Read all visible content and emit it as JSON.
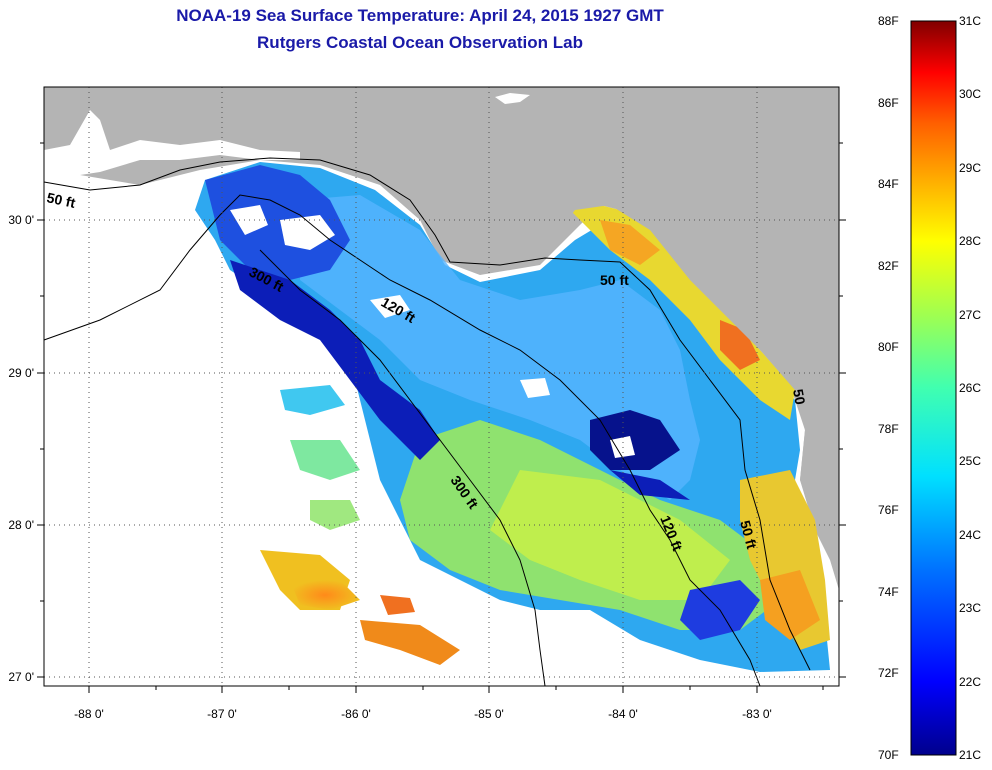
{
  "title": {
    "line1": "NOAA-19 Sea Surface Temperature:  April 24, 2015 1927 GMT",
    "line2": "Rutgers Coastal Ocean Observation Lab"
  },
  "axes": {
    "x_ticks": [
      "-88 0'",
      "-87 0'",
      "-86 0'",
      "-85 0'",
      "-84 0'",
      "-83 0'"
    ],
    "y_ticks": [
      "30 0'",
      "29 0'",
      "28 0'",
      "27 0'"
    ]
  },
  "contours": [
    "50 ft",
    "300 ft",
    "120 ft",
    "50 ft",
    "300 ft",
    "120 ft",
    "50 ft",
    "50"
  ],
  "colorbar": {
    "fahrenheit": [
      "88F",
      "86F",
      "84F",
      "82F",
      "80F",
      "78F",
      "76F",
      "74F",
      "72F",
      "70F"
    ],
    "celsius": [
      "31C",
      "30C",
      "29C",
      "28C",
      "27C",
      "26C",
      "25C",
      "24C",
      "23C",
      "22C",
      "21C"
    ]
  },
  "colors": {
    "title": "#1a1aa8",
    "land": "#b4b4b4",
    "cold": "#000080",
    "warm": "#800000"
  }
}
